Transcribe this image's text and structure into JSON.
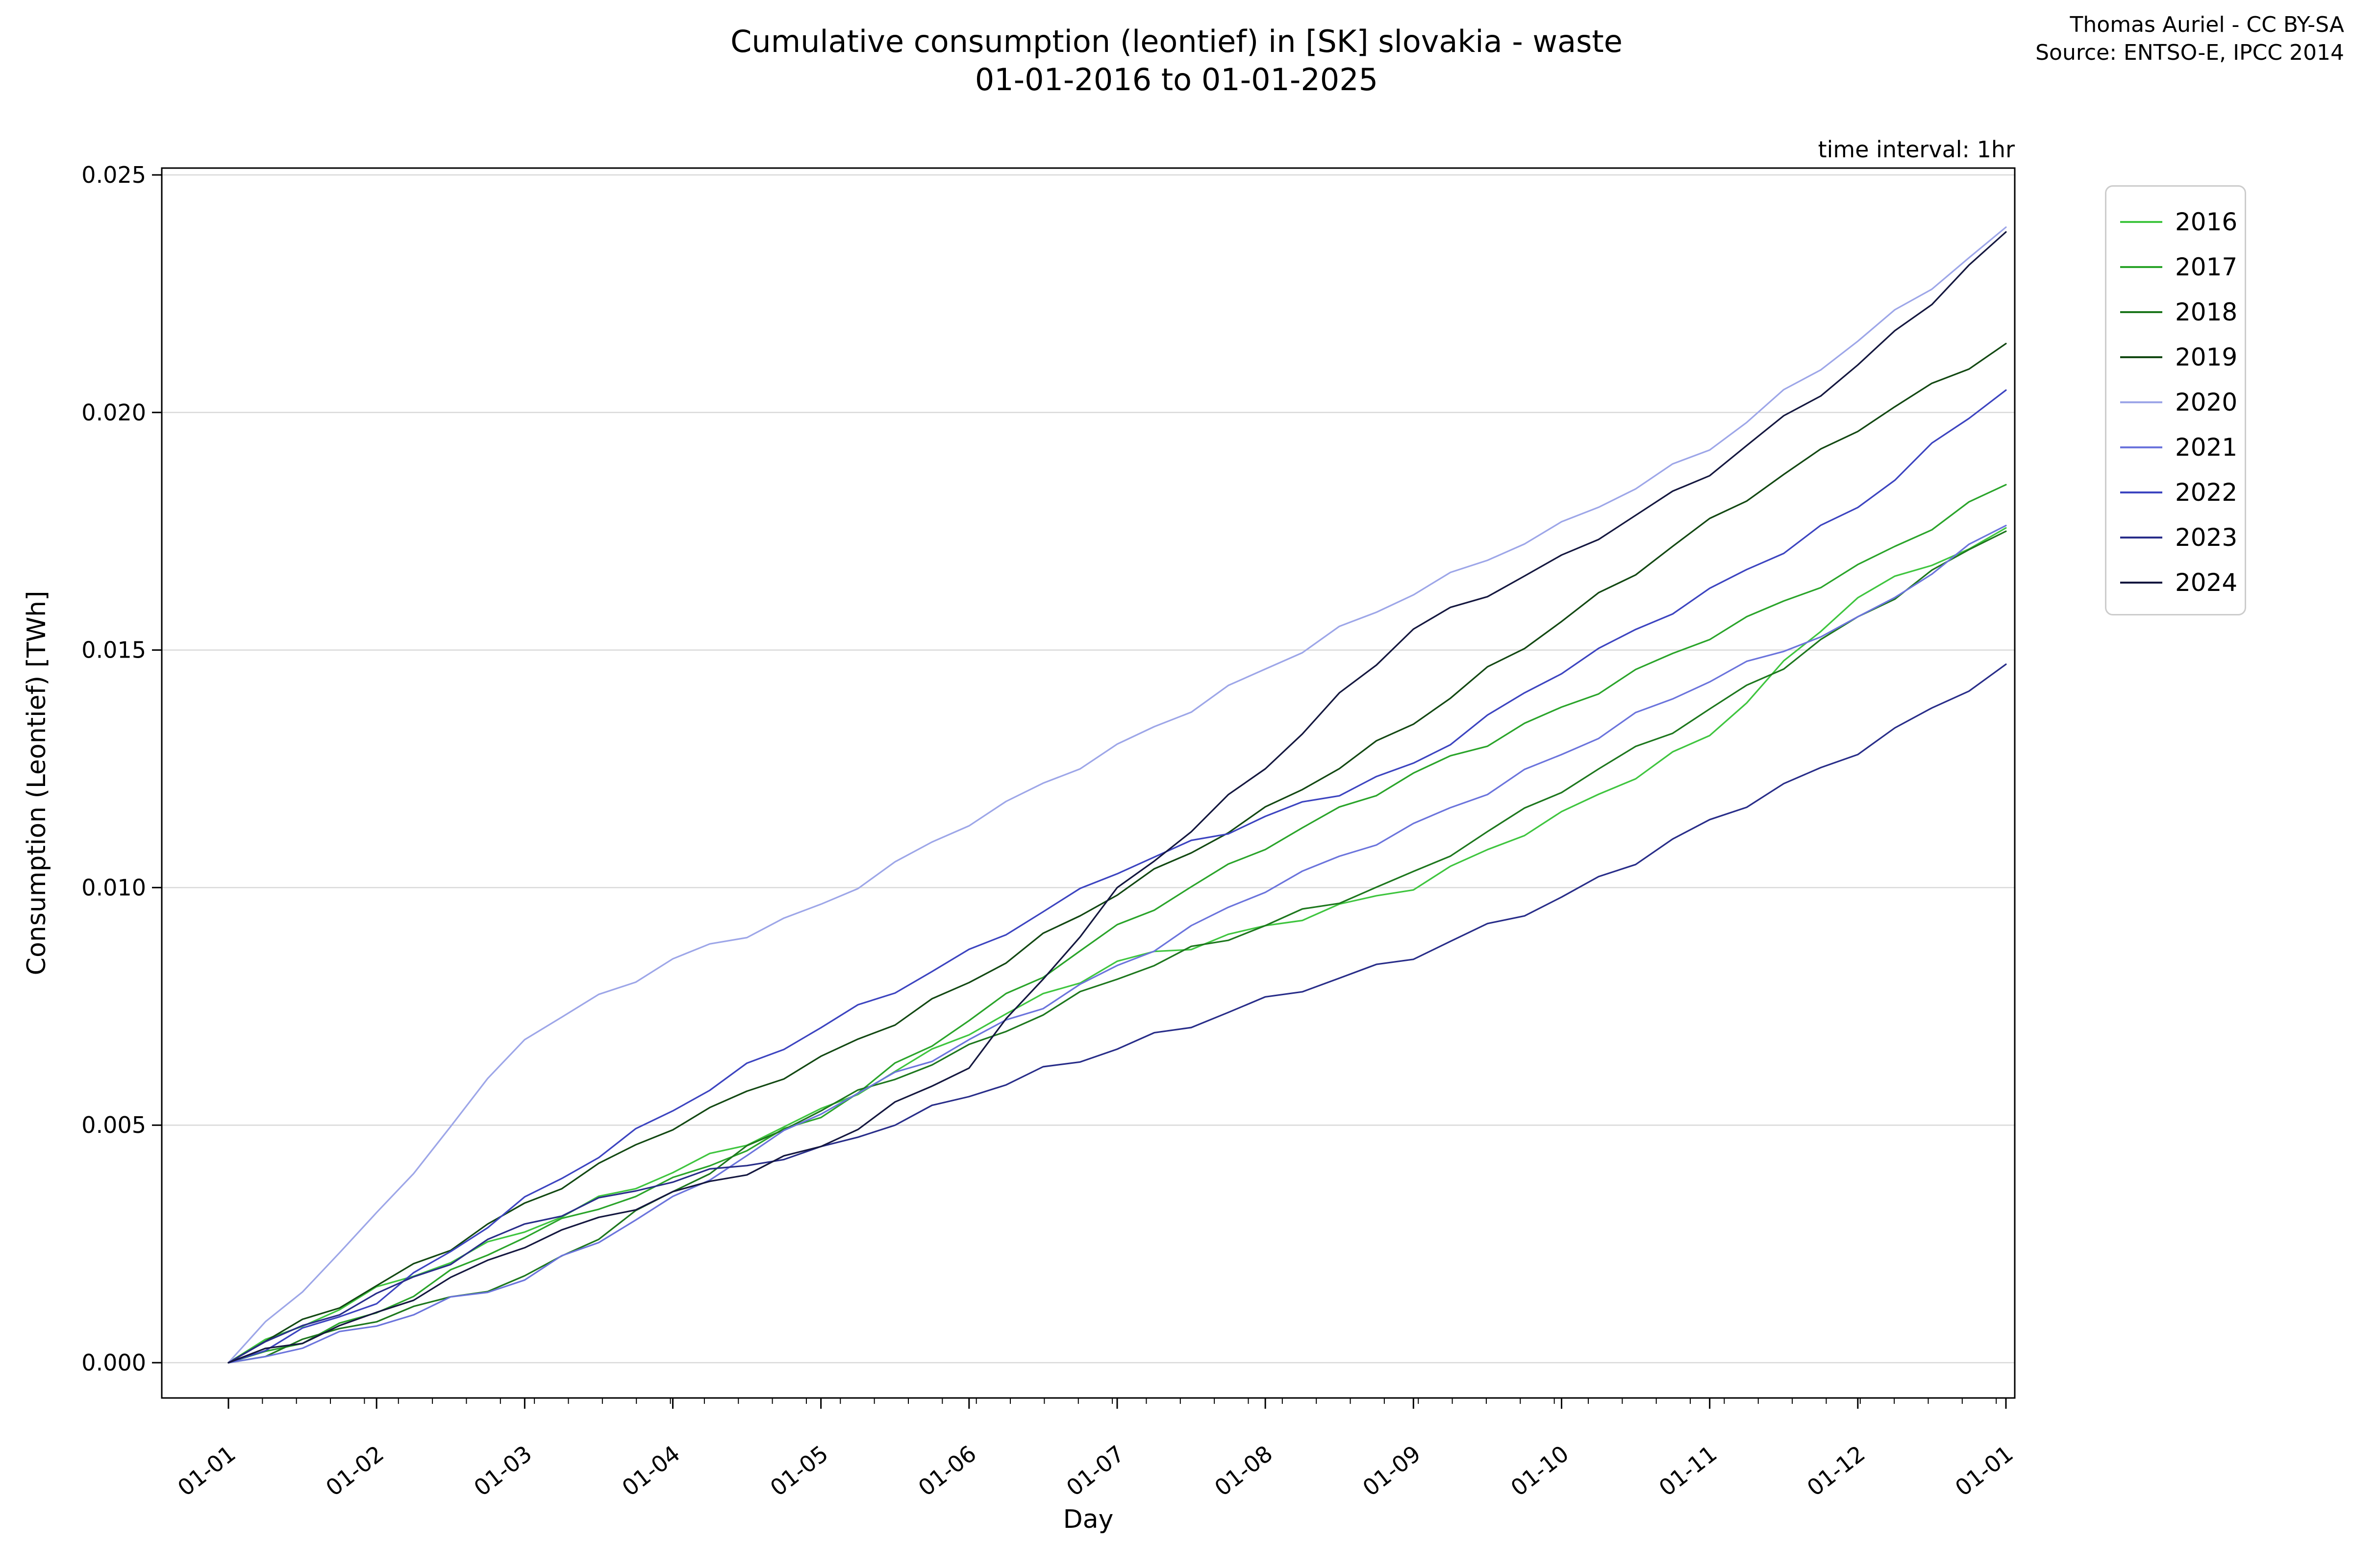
{
  "title_line1": "Cumulative consumption (leontief) in [SK] slovakia - waste",
  "title_line2": "01-01-2016 to 01-01-2025",
  "attribution_line1": "Thomas Auriel - CC BY-SA",
  "attribution_line2": "Source: ENTSO-E, IPCC 2014",
  "interval_note": "time interval: 1hr",
  "chart_data": {
    "type": "line",
    "title": "Cumulative consumption (leontief) in [SK] slovakia - waste 01-01-2016 to 01-01-2025",
    "xlabel": "Day",
    "ylabel": "Consumption (Leontief) [TWh]",
    "x_tick_labels": [
      "01-01",
      "01-02",
      "01-03",
      "01-04",
      "01-05",
      "01-06",
      "01-07",
      "01-08",
      "01-09",
      "01-10",
      "01-11",
      "01-12",
      "01-01"
    ],
    "y_tick_labels": [
      "0.000",
      "0.005",
      "0.010",
      "0.015",
      "0.020",
      "0.025"
    ],
    "y_ticks": [
      0.0,
      0.005,
      0.01,
      0.015,
      0.02,
      0.025
    ],
    "ylim": [
      -0.00075,
      0.02515
    ],
    "grid": "horizontal",
    "legend_position": "outside-right",
    "grid_color": "#d9d9d9",
    "series": [
      {
        "name": "2016",
        "color": "#3fc53f",
        "values": [
          0,
          0.0016,
          0.00275,
          0.004,
          0.00535,
          0.0069,
          0.00845,
          0.0092,
          0.00995,
          0.0116,
          0.0132,
          0.0161,
          0.01757
        ]
      },
      {
        "name": "2017",
        "color": "#2aa42a",
        "values": [
          0,
          0.00105,
          0.00263,
          0.0039,
          0.00516,
          0.0072,
          0.00922,
          0.0108,
          0.01241,
          0.0138,
          0.01522,
          0.0168,
          0.01848
        ]
      },
      {
        "name": "2018",
        "color": "#1d771d",
        "values": [
          0,
          0.00086,
          0.00183,
          0.0036,
          0.0053,
          0.0067,
          0.00807,
          0.0092,
          0.01034,
          0.012,
          0.01376,
          0.0157,
          0.0175
        ]
      },
      {
        "name": "2019",
        "color": "#124812",
        "values": [
          0,
          0.00162,
          0.00336,
          0.0049,
          0.00645,
          0.008,
          0.00984,
          0.0117,
          0.01344,
          0.0156,
          0.01777,
          0.0196,
          0.02145
        ]
      },
      {
        "name": "2020",
        "color": "#9da6e8",
        "values": [
          0,
          0.00316,
          0.0068,
          0.0085,
          0.00965,
          0.0113,
          0.01302,
          0.0146,
          0.01616,
          0.0177,
          0.01921,
          0.0215,
          0.0239
        ]
      },
      {
        "name": "2021",
        "color": "#6b74dc",
        "values": [
          0,
          0.00077,
          0.00174,
          0.0035,
          0.00523,
          0.0068,
          0.00836,
          0.0099,
          0.01135,
          0.0128,
          0.01433,
          0.0157,
          0.01762
        ]
      },
      {
        "name": "2022",
        "color": "#3c44c0",
        "values": [
          0,
          0.00124,
          0.00349,
          0.0053,
          0.00705,
          0.0087,
          0.01029,
          0.0115,
          0.01262,
          0.0145,
          0.0163,
          0.018,
          0.02047
        ]
      },
      {
        "name": "2023",
        "color": "#282d89",
        "values": [
          0,
          0.00146,
          0.00292,
          0.0038,
          0.00455,
          0.0056,
          0.0066,
          0.0077,
          0.00849,
          0.0098,
          0.01143,
          0.0128,
          0.0147
        ]
      },
      {
        "name": "2024",
        "color": "#14173f",
        "values": [
          0,
          0.00106,
          0.00242,
          0.0036,
          0.00455,
          0.0062,
          0.01,
          0.0125,
          0.01544,
          0.017,
          0.01867,
          0.021,
          0.0238
        ]
      }
    ]
  }
}
